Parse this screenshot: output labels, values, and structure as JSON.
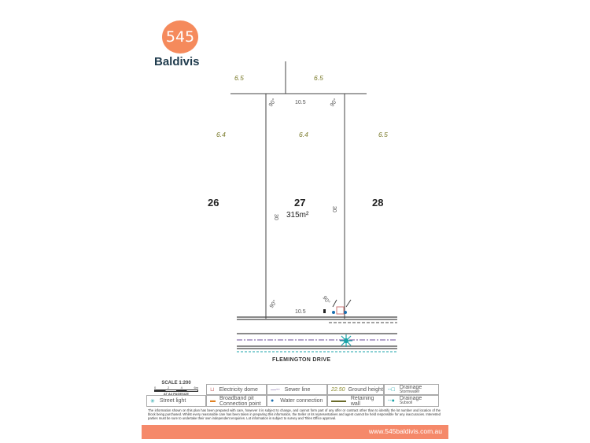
{
  "brand": {
    "logo_number": "545",
    "logo_name": "Baldivis"
  },
  "plan": {
    "lots": [
      {
        "number": "26"
      },
      {
        "number": "27",
        "area": "315m²"
      },
      {
        "number": "28"
      }
    ],
    "ground_heights": [
      "6.5",
      "6.5",
      "6.4",
      "6.4",
      "6.5"
    ],
    "dimensions": {
      "top": "10.5",
      "bottom": "10.5",
      "left": "30",
      "right": "30"
    },
    "angles": [
      "90°",
      "90°",
      "90°",
      "90°"
    ],
    "street": "FLEMINGTON DRIVE"
  },
  "scale": {
    "title": "SCALE 1:200",
    "ticks": [
      "0",
      "2",
      "4",
      "6m"
    ],
    "note": "AT A4 PAGESIZE"
  },
  "legend": [
    {
      "label": "Electricity dome",
      "icon": "electricity-dome-icon"
    },
    {
      "label": "Sewer line",
      "icon": "sewer-line-icon"
    },
    {
      "label": "Ground height",
      "sample": "22.50"
    },
    {
      "label": "Drainage",
      "sub": "Stormwater",
      "icon": "drainage-stormwater-icon"
    },
    {
      "label": "Street light",
      "icon": "street-light-icon"
    },
    {
      "label": "Broadband pit",
      "sub": "Connection point",
      "icon": "broadband-pit-icon"
    },
    {
      "label": "Water connection",
      "icon": "water-drop-icon"
    },
    {
      "label": "Retaining wall",
      "icon": "retaining-wall-icon"
    },
    {
      "label": "Drainage",
      "sub": "Subsoil",
      "icon": "drainage-subsoil-icon"
    }
  ],
  "disclaimer": "The information shown on this plan has been prepared with care, however it is subject to change, and cannot form part of any offer or contract other than to identify the lot number and location of the block being purchased. Whilst every reasonable care has been taken in preparing this information, the Seller or its representatives and agent cannot be held responsible for any inaccuracies. Interested parties must be sure to undertake their own independent enquiries. Lot information is subject to survey and Titles Office approval.",
  "footer": {
    "url": "www.545baldivis.com.au"
  },
  "colors": {
    "brand": "#f58a5c",
    "navy": "#1f3b4d",
    "teal": "#1aa3a8",
    "sewer": "#6b4c9a",
    "ground": "#8a8a2a"
  }
}
